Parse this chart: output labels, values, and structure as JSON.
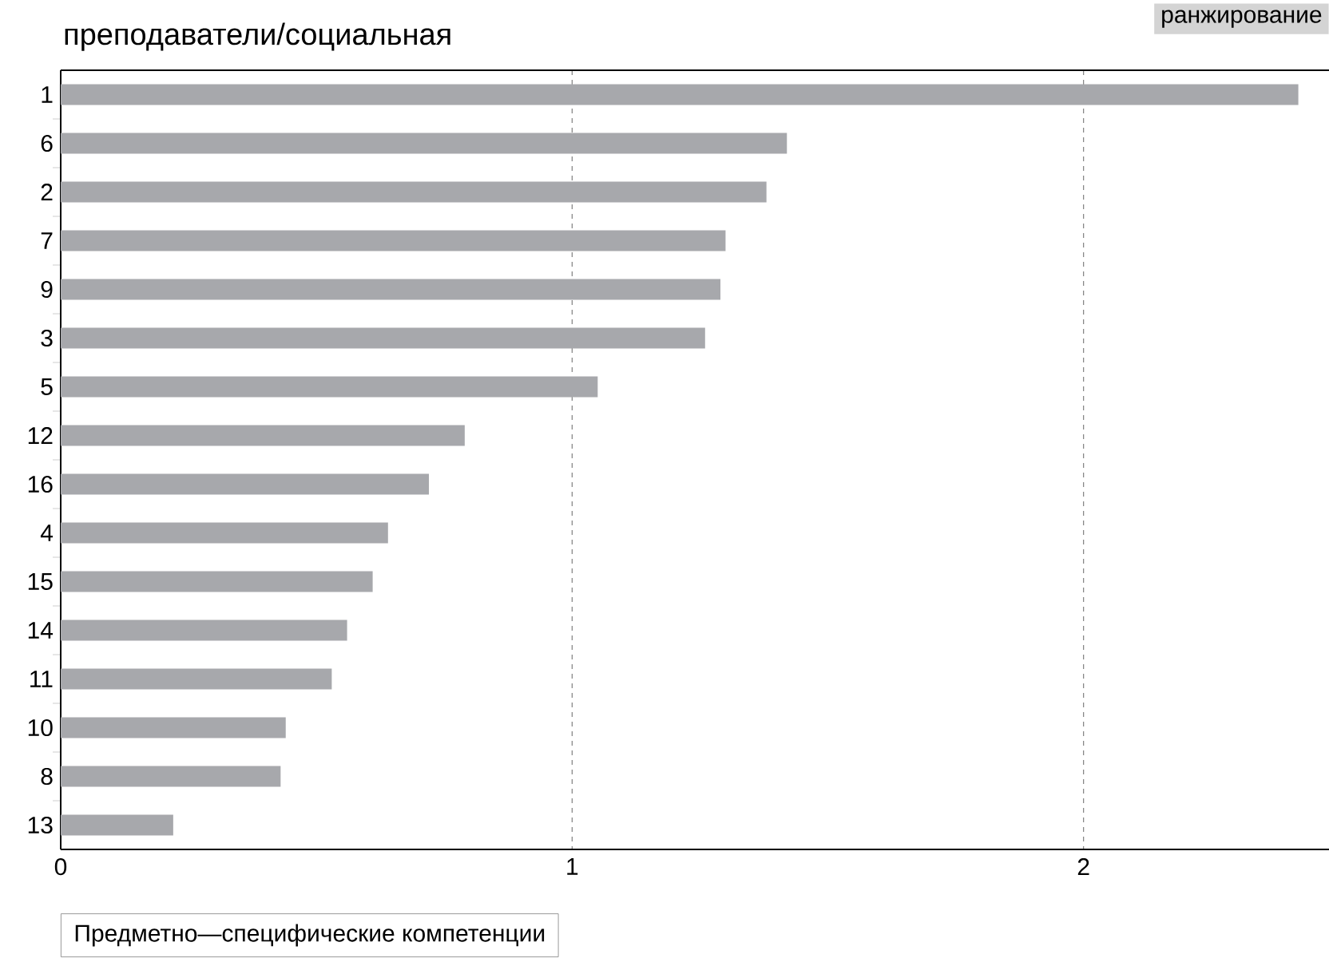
{
  "chart_data": {
    "type": "bar",
    "orientation": "horizontal",
    "title": "преподаватели/социальная",
    "xlabel": "Предметно—специфические компетенции",
    "annotations": [
      "ранжирование"
    ],
    "categories": [
      "1",
      "6",
      "2",
      "7",
      "9",
      "3",
      "5",
      "12",
      "16",
      "4",
      "15",
      "14",
      "11",
      "10",
      "8",
      "13"
    ],
    "values": [
      2.42,
      1.42,
      1.38,
      1.3,
      1.29,
      1.26,
      1.05,
      0.79,
      0.72,
      0.64,
      0.61,
      0.56,
      0.53,
      0.44,
      0.43,
      0.22
    ],
    "color": "#a7a8ac",
    "xlim": [
      0,
      2.48
    ],
    "xticks": [
      0,
      1,
      2
    ],
    "grid": "x"
  }
}
